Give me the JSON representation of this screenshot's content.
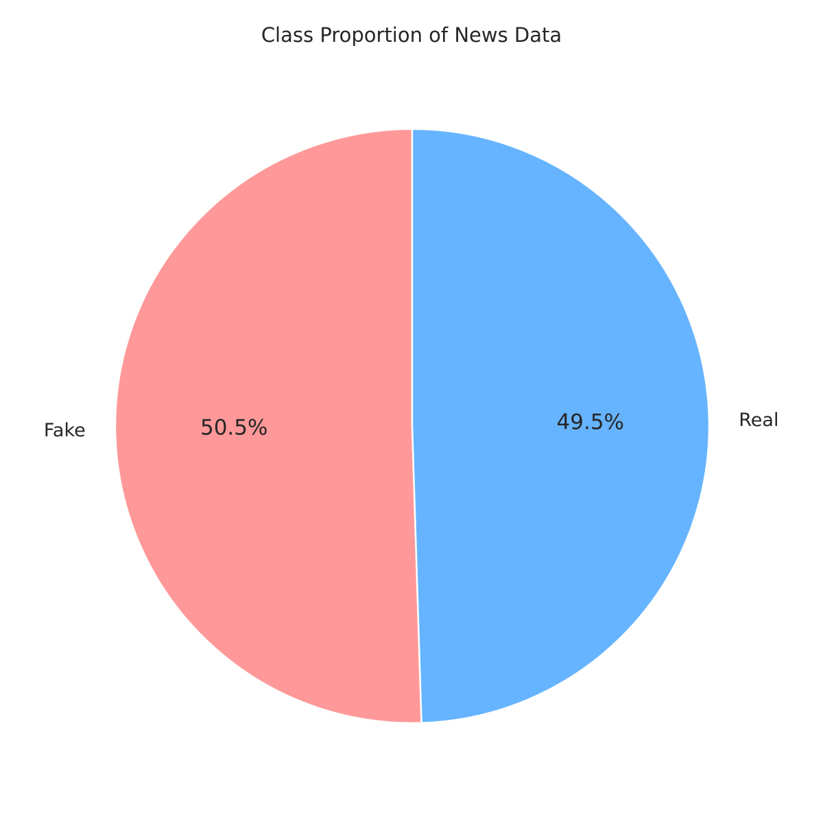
{
  "chart_data": {
    "type": "pie",
    "title": "Class Proportion of News Data",
    "categories": [
      "Fake",
      "Real"
    ],
    "values": [
      50.5,
      49.5
    ],
    "value_labels": [
      "50.5%",
      "49.5%"
    ],
    "colors": [
      "#ff9999",
      "#66b3ff"
    ],
    "start_angle_deg": 90,
    "direction": "counterclockwise",
    "edge_color": "#ffffff",
    "legend": "none"
  }
}
